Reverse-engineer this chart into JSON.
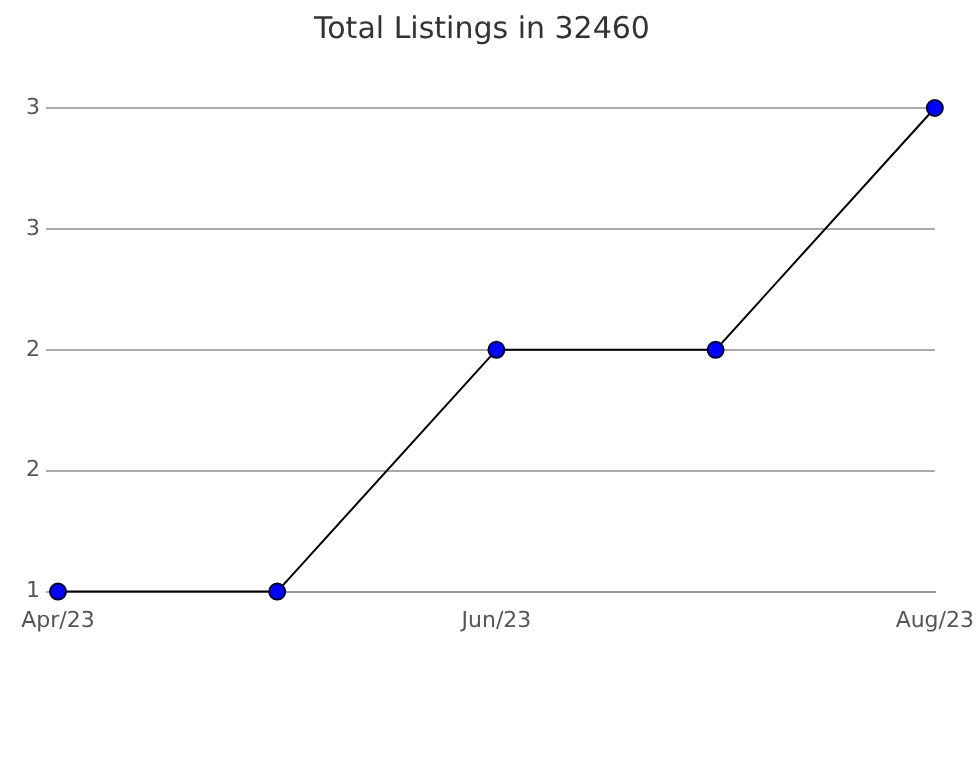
{
  "chart_data": {
    "type": "line",
    "title": "Total Listings in 32460",
    "categories": [
      "Apr/23",
      null,
      "Jun/23",
      null,
      "Aug/23"
    ],
    "series": [
      {
        "color": "#0000ff",
        "values": [
          1,
          1,
          2,
          2,
          3
        ]
      }
    ],
    "ylim": [
      1,
      3
    ],
    "yticks": [
      {
        "value": 1,
        "label": "1"
      },
      {
        "value": 1.5,
        "label": "2"
      },
      {
        "value": 2,
        "label": "2"
      },
      {
        "value": 2.5,
        "label": "3"
      },
      {
        "value": 3,
        "label": "3"
      }
    ],
    "grid": "y",
    "legend": false,
    "marker": "circle",
    "line_style": "solid"
  }
}
